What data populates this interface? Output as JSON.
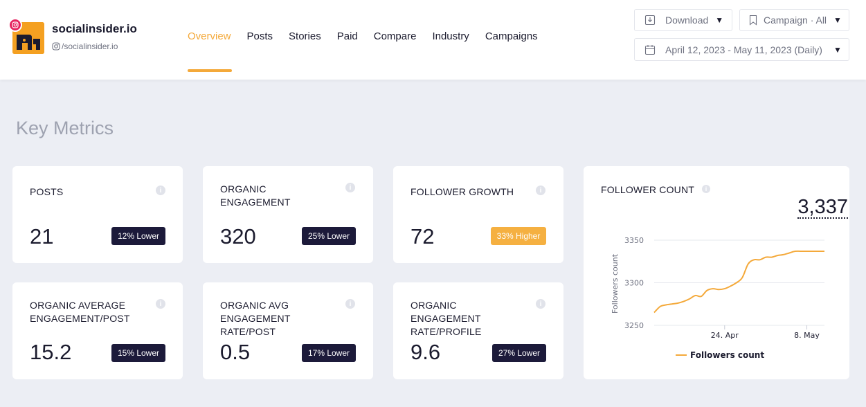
{
  "brand": {
    "name": "socialinsider.io",
    "handle": "/socialinsider.io"
  },
  "nav": {
    "items": [
      "Overview",
      "Posts",
      "Stories",
      "Paid",
      "Compare",
      "Industry",
      "Campaigns"
    ],
    "active": "Overview"
  },
  "toolbar": {
    "download_label": "Download",
    "campaign_label": "Campaign · All",
    "date_range": "April 12, 2023 - May 11, 2023 (Daily)"
  },
  "section_title": "Key Metrics",
  "metrics": [
    {
      "title": "POSTS",
      "value": "21",
      "badge": "12% Lower"
    },
    {
      "title": "ORGANIC ENGAGEMENT",
      "value": "320",
      "badge": "25% Lower"
    },
    {
      "title": "FOLLOWER GROWTH",
      "value": "72",
      "badge": "33% Higher"
    },
    {
      "title": "ORGANIC AVERAGE ENGAGEMENT/POST",
      "value": "15.2",
      "badge": "15% Lower"
    },
    {
      "title": "ORGANIC AVG ENGAGEMENT RATE/POST",
      "value": "0.5",
      "badge": "17% Lower"
    },
    {
      "title": "ORGANIC ENGAGEMENT RATE/PROFILE",
      "value": "9.6",
      "badge": "27% Lower"
    }
  ],
  "follower_count": {
    "title": "FOLLOWER COUNT",
    "value": "3,337"
  },
  "colors": {
    "accent": "#f4a93a",
    "badge_lower": "#1c1a3a",
    "badge_higher": "#f5b041",
    "line": "#f4a93a"
  },
  "chart_data": {
    "type": "line",
    "ylabel": "Followers count",
    "xlabel": "",
    "ylim": [
      3250,
      3350
    ],
    "yticks": [
      3250,
      3300,
      3350
    ],
    "xtick_labels": [
      "24. Apr",
      "8. May"
    ],
    "legend": "Followers count",
    "legend_position": "bottom",
    "series": [
      {
        "name": "Followers count",
        "x": [
          "2023-04-12",
          "2023-04-13",
          "2023-04-14",
          "2023-04-15",
          "2023-04-16",
          "2023-04-17",
          "2023-04-18",
          "2023-04-19",
          "2023-04-20",
          "2023-04-21",
          "2023-04-22",
          "2023-04-23",
          "2023-04-24",
          "2023-04-25",
          "2023-04-26",
          "2023-04-27",
          "2023-04-28",
          "2023-04-29",
          "2023-04-30",
          "2023-05-01",
          "2023-05-02",
          "2023-05-03",
          "2023-05-04",
          "2023-05-05",
          "2023-05-06",
          "2023-05-07",
          "2023-05-08",
          "2023-05-09",
          "2023-05-10",
          "2023-05-11"
        ],
        "values": [
          3265,
          3272,
          3274,
          3275,
          3276,
          3278,
          3281,
          3285,
          3284,
          3291,
          3293,
          3292,
          3293,
          3296,
          3300,
          3306,
          3322,
          3327,
          3327,
          3330,
          3330,
          3332,
          3333,
          3335,
          3337,
          3337,
          3337,
          3337,
          3337,
          3337
        ]
      }
    ]
  }
}
